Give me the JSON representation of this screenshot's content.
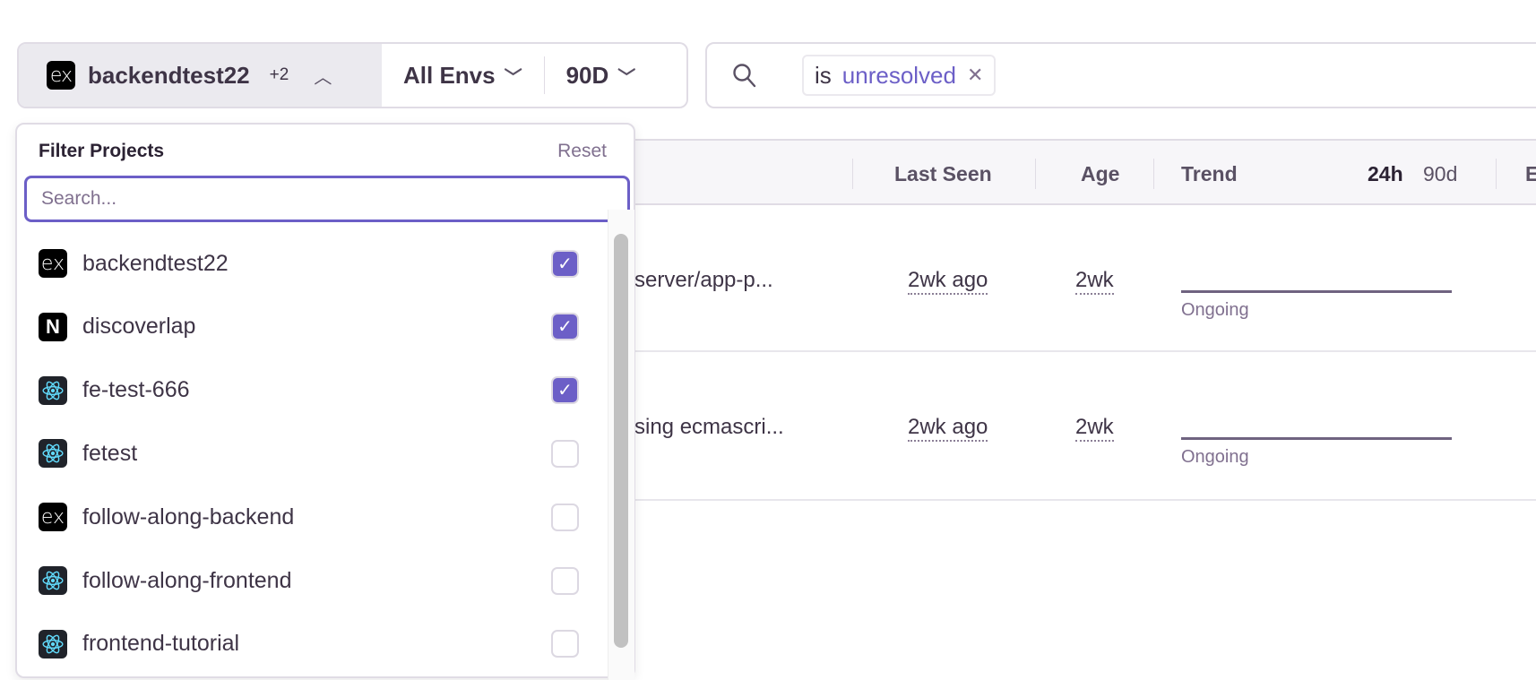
{
  "filters": {
    "project": "backendtest22",
    "project_extra": "+2",
    "environment": "All Envs",
    "period": "90D"
  },
  "search": {
    "token_key": "is",
    "token_value": "unresolved"
  },
  "table": {
    "headers": {
      "last_seen": "Last Seen",
      "age": "Age",
      "trend": "Trend",
      "period_24h": "24h",
      "period_90d": "90d",
      "next": "E"
    },
    "rows": [
      {
        "title": "-server/app-p...",
        "last_seen": "2wk ago",
        "age": "2wk",
        "trend_label": "Ongoing"
      },
      {
        "title": "rsing ecmascri...",
        "last_seen": "2wk ago",
        "age": "2wk",
        "trend_label": "Ongoing"
      }
    ]
  },
  "dropdown": {
    "title": "Filter Projects",
    "reset": "Reset",
    "search_placeholder": "Search...",
    "items": [
      {
        "name": "backendtest22",
        "icon": "express-icon",
        "checked": true
      },
      {
        "name": "discoverlap",
        "icon": "nextjs-icon",
        "checked": true
      },
      {
        "name": "fe-test-666",
        "icon": "react-icon",
        "checked": true
      },
      {
        "name": "fetest",
        "icon": "react-icon",
        "checked": false
      },
      {
        "name": "follow-along-backend",
        "icon": "express-icon",
        "checked": false
      },
      {
        "name": "follow-along-frontend",
        "icon": "react-icon",
        "checked": false
      },
      {
        "name": "frontend-tutorial",
        "icon": "react-icon",
        "checked": false
      }
    ]
  },
  "colors": {
    "accent": "#6c5fc7",
    "text": "#3e3446",
    "muted": "#80708f",
    "border": "#e0dce5"
  }
}
